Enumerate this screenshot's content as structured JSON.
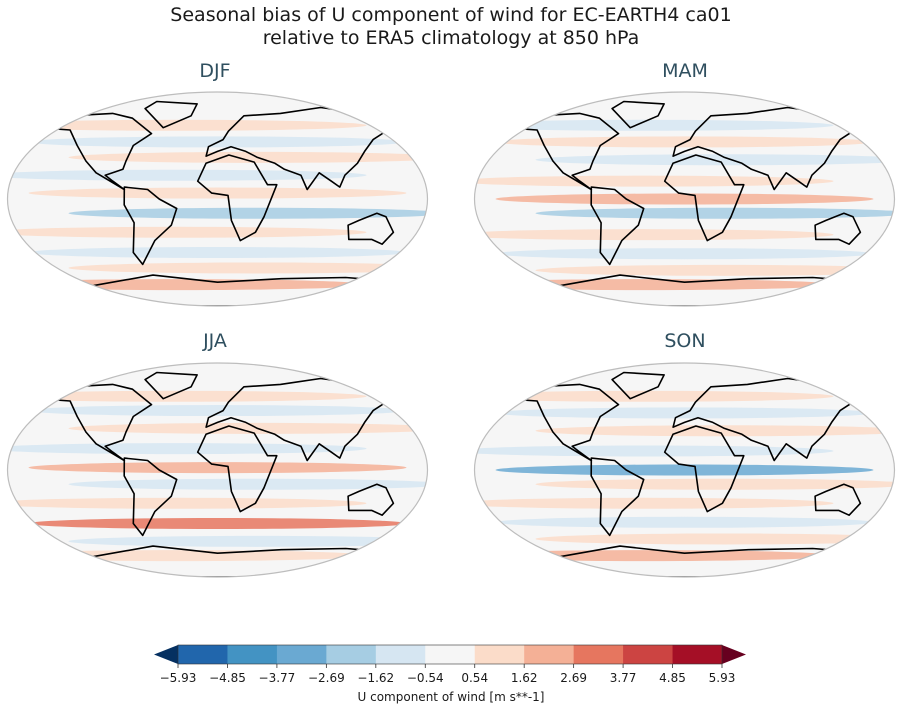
{
  "title_line1": "Seasonal bias of U component of wind for EC-EARTH4 ca01",
  "title_line2": "relative to ERA5 climatology at 850 hPa",
  "chart_data": {
    "type": "heatmap",
    "panels": [
      {
        "season": "DJF",
        "bands": [
          {
            "lat": 62,
            "value": 1.2
          },
          {
            "lat": 48,
            "value": -1.0
          },
          {
            "lat": 35,
            "value": 0.8
          },
          {
            "lat": 20,
            "value": -1.3
          },
          {
            "lat": 5,
            "value": 1.5
          },
          {
            "lat": -12,
            "value": -2.6
          },
          {
            "lat": -28,
            "value": 0.9
          },
          {
            "lat": -45,
            "value": -1.4
          },
          {
            "lat": -58,
            "value": 1.1
          },
          {
            "lat": -72,
            "value": 2.4
          }
        ]
      },
      {
        "season": "MAM",
        "bands": [
          {
            "lat": 62,
            "value": -1.1
          },
          {
            "lat": 48,
            "value": 1.0
          },
          {
            "lat": 33,
            "value": -0.9
          },
          {
            "lat": 15,
            "value": 1.4
          },
          {
            "lat": 0,
            "value": 1.8
          },
          {
            "lat": -12,
            "value": -2.2
          },
          {
            "lat": -30,
            "value": 0.8
          },
          {
            "lat": -46,
            "value": -1.3
          },
          {
            "lat": -60,
            "value": 1.2
          },
          {
            "lat": -72,
            "value": 2.0
          }
        ]
      },
      {
        "season": "JJA",
        "bands": [
          {
            "lat": 62,
            "value": 1.3
          },
          {
            "lat": 50,
            "value": -1.2
          },
          {
            "lat": 35,
            "value": 1.1
          },
          {
            "lat": 18,
            "value": -1.0
          },
          {
            "lat": 2,
            "value": 1.9
          },
          {
            "lat": -12,
            "value": -1.1
          },
          {
            "lat": -28,
            "value": 1.0
          },
          {
            "lat": -45,
            "value": 2.9
          },
          {
            "lat": -60,
            "value": -1.0
          },
          {
            "lat": -72,
            "value": 1.2
          }
        ]
      },
      {
        "season": "SON",
        "bands": [
          {
            "lat": 62,
            "value": 1.0
          },
          {
            "lat": 48,
            "value": -1.1
          },
          {
            "lat": 33,
            "value": 0.9
          },
          {
            "lat": 16,
            "value": -1.2
          },
          {
            "lat": 0,
            "value": -3.1
          },
          {
            "lat": -12,
            "value": 1.2
          },
          {
            "lat": -28,
            "value": 1.0
          },
          {
            "lat": -44,
            "value": -1.2
          },
          {
            "lat": -58,
            "value": 1.5
          },
          {
            "lat": -72,
            "value": 1.8
          }
        ]
      }
    ],
    "colorbar": {
      "label": "U component of wind [m s**-1]",
      "ticks": [
        "−5.93",
        "−4.85",
        "−3.77",
        "−2.69",
        "−1.62",
        "−0.54",
        "0.54",
        "1.62",
        "2.69",
        "3.77",
        "4.85",
        "5.93"
      ],
      "levels": [
        -5.93,
        -4.85,
        -3.77,
        -2.69,
        -1.62,
        -0.54,
        0.54,
        1.62,
        2.69,
        3.77,
        4.85,
        5.93
      ],
      "colors": [
        "#053061",
        "#2166ac",
        "#4393c3",
        "#6aa9d2",
        "#a6cde3",
        "#d6e6f2",
        "#f6f6f6",
        "#fbdcc9",
        "#f4b096",
        "#e6765f",
        "#cc4442",
        "#a50f26",
        "#67001f"
      ],
      "extend": "both"
    }
  }
}
